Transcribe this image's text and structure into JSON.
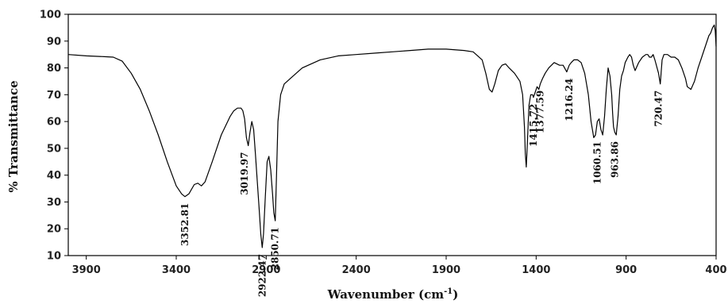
{
  "chart_data": {
    "type": "line",
    "title": "",
    "xlabel": "Wavenumber (cm",
    "xlabel_sup": "-1",
    "xlabel_close": ")",
    "ylabel": "% Transmittance",
    "xlim": [
      4000,
      400
    ],
    "ylim": [
      10,
      100
    ],
    "x_reversed": true,
    "x_ticks": [
      3900,
      3400,
      2900,
      2400,
      1900,
      1400,
      900,
      400
    ],
    "x_tick_labels": [
      "3900",
      "3400",
      "2900",
      "2400",
      "1900",
      "1400",
      "900",
      "400"
    ],
    "y_ticks": [
      10,
      20,
      30,
      40,
      50,
      60,
      70,
      80,
      90,
      100
    ],
    "y_tick_labels": [
      "10",
      "20",
      "30",
      "40",
      "50",
      "60",
      "70",
      "80",
      "90",
      "100"
    ],
    "grid": false,
    "legend": "none",
    "line_color": "#000000",
    "series": [
      {
        "x": [
          4000,
          3900,
          3800,
          3750,
          3700,
          3650,
          3600,
          3550,
          3500,
          3450,
          3400,
          3370,
          3352,
          3330,
          3300,
          3280,
          3260,
          3240,
          3200,
          3150,
          3100,
          3080,
          3060,
          3040,
          3030,
          3020,
          3010,
          3000,
          2990,
          2980,
          2970,
          2960,
          2950,
          2940,
          2930,
          2922,
          2915,
          2905,
          2895,
          2885,
          2875,
          2865,
          2858,
          2850,
          2843,
          2835,
          2820,
          2800,
          2750,
          2700,
          2600,
          2500,
          2400,
          2300,
          2200,
          2100,
          2000,
          1900,
          1800,
          1750,
          1700,
          1680,
          1660,
          1645,
          1630,
          1610,
          1590,
          1570,
          1550,
          1520,
          1490,
          1475,
          1465,
          1460,
          1455,
          1450,
          1440,
          1430,
          1420,
          1415,
          1405,
          1395,
          1385,
          1377,
          1365,
          1350,
          1330,
          1300,
          1270,
          1250,
          1230,
          1216,
          1205,
          1190,
          1170,
          1150,
          1130,
          1110,
          1095,
          1080,
          1070,
          1060,
          1050,
          1040,
          1030,
          1020,
          1010,
          1000,
          990,
          980,
          975,
          970,
          963,
          955,
          945,
          935,
          925,
          915,
          905,
          890,
          880,
          870,
          860,
          850,
          830,
          810,
          790,
          780,
          770,
          760,
          750,
          740,
          720,
          710,
          700,
          690,
          670,
          650,
          630,
          610,
          590,
          570,
          560,
          540,
          520,
          500,
          480,
          460,
          440,
          430,
          420,
          410,
          405,
          400
        ],
        "y": [
          85,
          84.5,
          84.2,
          84,
          82.5,
          78,
          72,
          64,
          55,
          45,
          36,
          33,
          32,
          33,
          36.5,
          37,
          36,
          37.5,
          45,
          55,
          62,
          64,
          65,
          65,
          64,
          61,
          54,
          51,
          56,
          60,
          57,
          48,
          38,
          28,
          18,
          13,
          18,
          32,
          45,
          47,
          42,
          33,
          26,
          23,
          40,
          60,
          70,
          74,
          77,
          80,
          83,
          84.5,
          85,
          85.5,
          86,
          86.5,
          87,
          87,
          86.5,
          86,
          83,
          78,
          72,
          71,
          74,
          79,
          81,
          81.5,
          80,
          78,
          75,
          70,
          58,
          48,
          43,
          50,
          66,
          70,
          70,
          69,
          71,
          73,
          72,
          74,
          76,
          78,
          80,
          82,
          81,
          81,
          78.5,
          81,
          82,
          83,
          83,
          82,
          78,
          70,
          60,
          54,
          55,
          60,
          61,
          57,
          55,
          62,
          72,
          80,
          77,
          70,
          63,
          58,
          56,
          55,
          62,
          72,
          77,
          79,
          82,
          84,
          85,
          84,
          81,
          79,
          82,
          84,
          85,
          85,
          84,
          84,
          85,
          83,
          78,
          74,
          83,
          85,
          85,
          84,
          84,
          83,
          80,
          76,
          73,
          72,
          75,
          80,
          84,
          88,
          92,
          93,
          95,
          96,
          94,
          88
        ]
      }
    ],
    "annotations": [
      {
        "text": "3352.81",
        "x": 3352,
        "y": 32
      },
      {
        "text": "3019.97",
        "x": 3020,
        "y": 51
      },
      {
        "text": "2922.47",
        "x": 2922,
        "y": 13
      },
      {
        "text": "2850.71",
        "x": 2850,
        "y": 23
      },
      {
        "text": "1415.72",
        "x": 1415,
        "y": 69
      },
      {
        "text": "1377.59",
        "x": 1377,
        "y": 74
      },
      {
        "text": "1216.24",
        "x": 1216,
        "y": 78.5
      },
      {
        "text": "1060.51",
        "x": 1060,
        "y": 55
      },
      {
        "text": "963.86",
        "x": 963,
        "y": 55
      },
      {
        "text": "720.47",
        "x": 720,
        "y": 74
      }
    ]
  }
}
